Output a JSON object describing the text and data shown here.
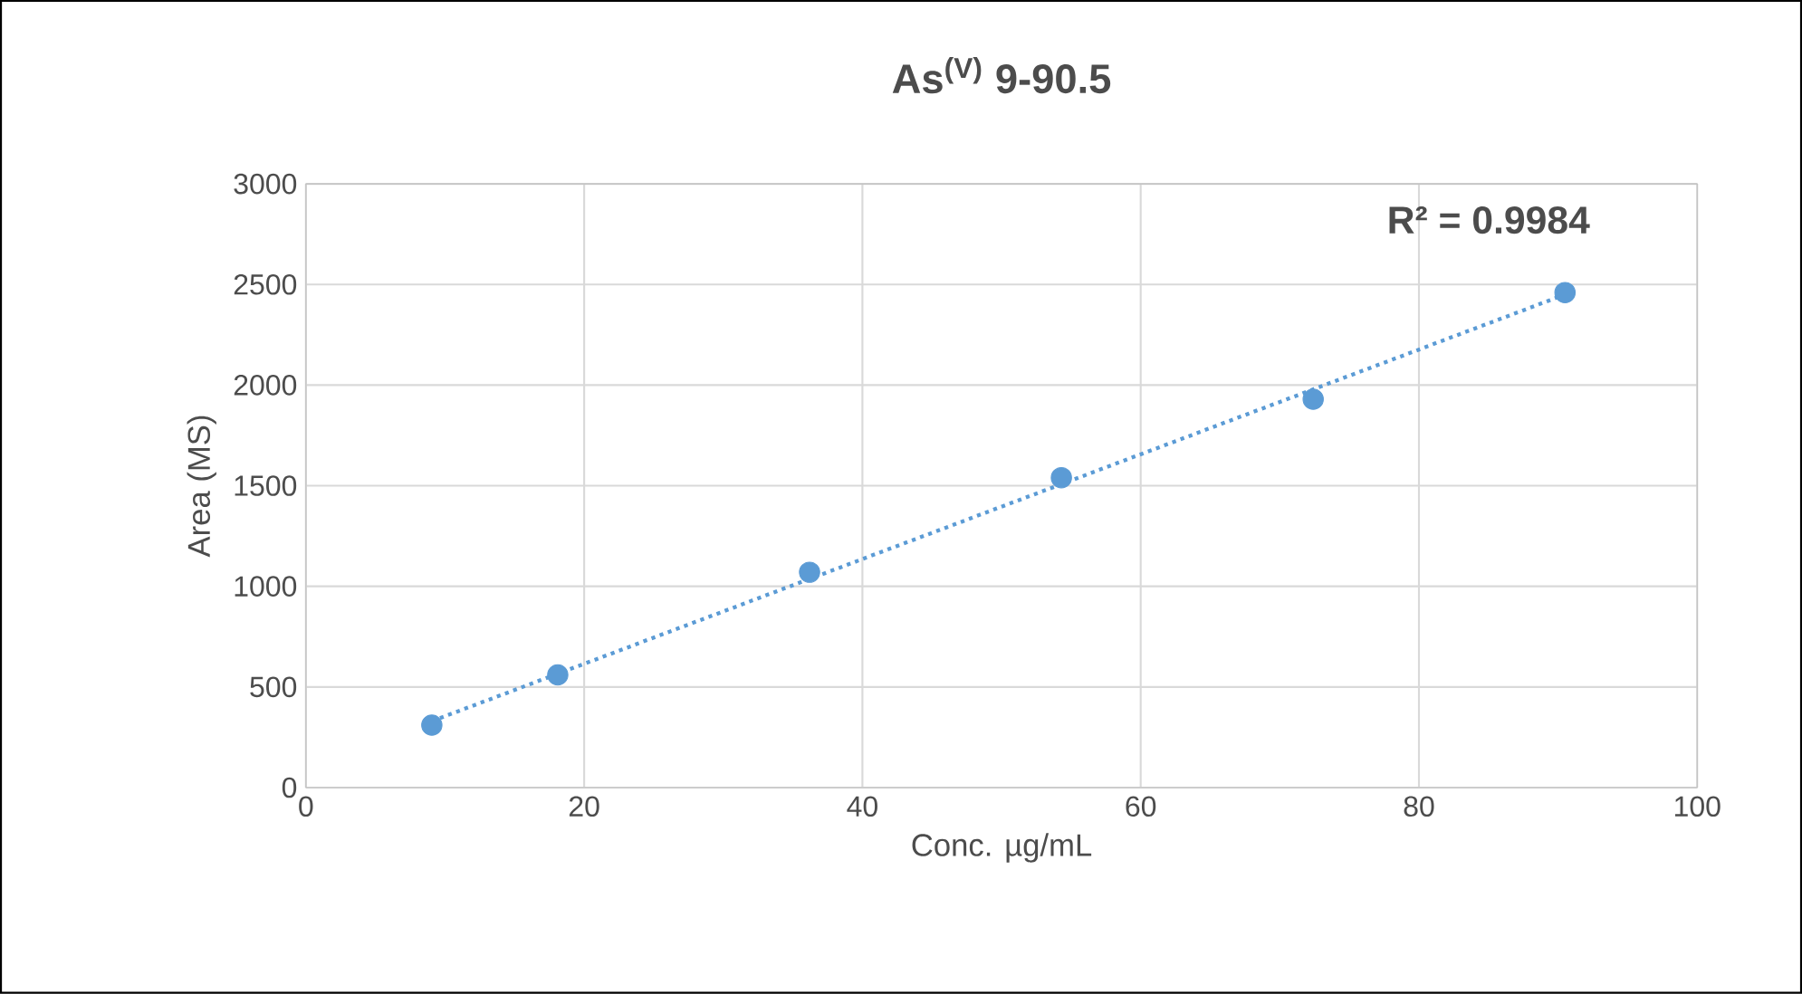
{
  "chart_data": {
    "type": "scatter",
    "title": "As$^{(V)}$ 9-90.5",
    "xlabel": "Conc. µg/mL",
    "ylabel": "Area (MS)",
    "xlim": [
      0,
      100
    ],
    "xticks": [
      0,
      20,
      40,
      60,
      80,
      100
    ],
    "ylim": [
      0,
      3000
    ],
    "yticks": [
      0,
      500,
      1000,
      1500,
      2000,
      2500,
      3000
    ],
    "grid": true,
    "annotations": [
      "R² = 0.9984"
    ],
    "series": [
      {
        "color": "#5b9bd5",
        "marker": "circle",
        "x": [
          9.05,
          18.1,
          36.2,
          54.3,
          72.4,
          90.5
        ],
        "values": [
          310,
          560,
          1070,
          1540,
          1930,
          2460
        ]
      },
      {
        "type": "line",
        "color": "#5b9bd5",
        "marker": "none",
        "line_style": "dotted",
        "x": [
          9.05,
          90.5
        ],
        "values": [
          330,
          2450
        ]
      }
    ]
  }
}
